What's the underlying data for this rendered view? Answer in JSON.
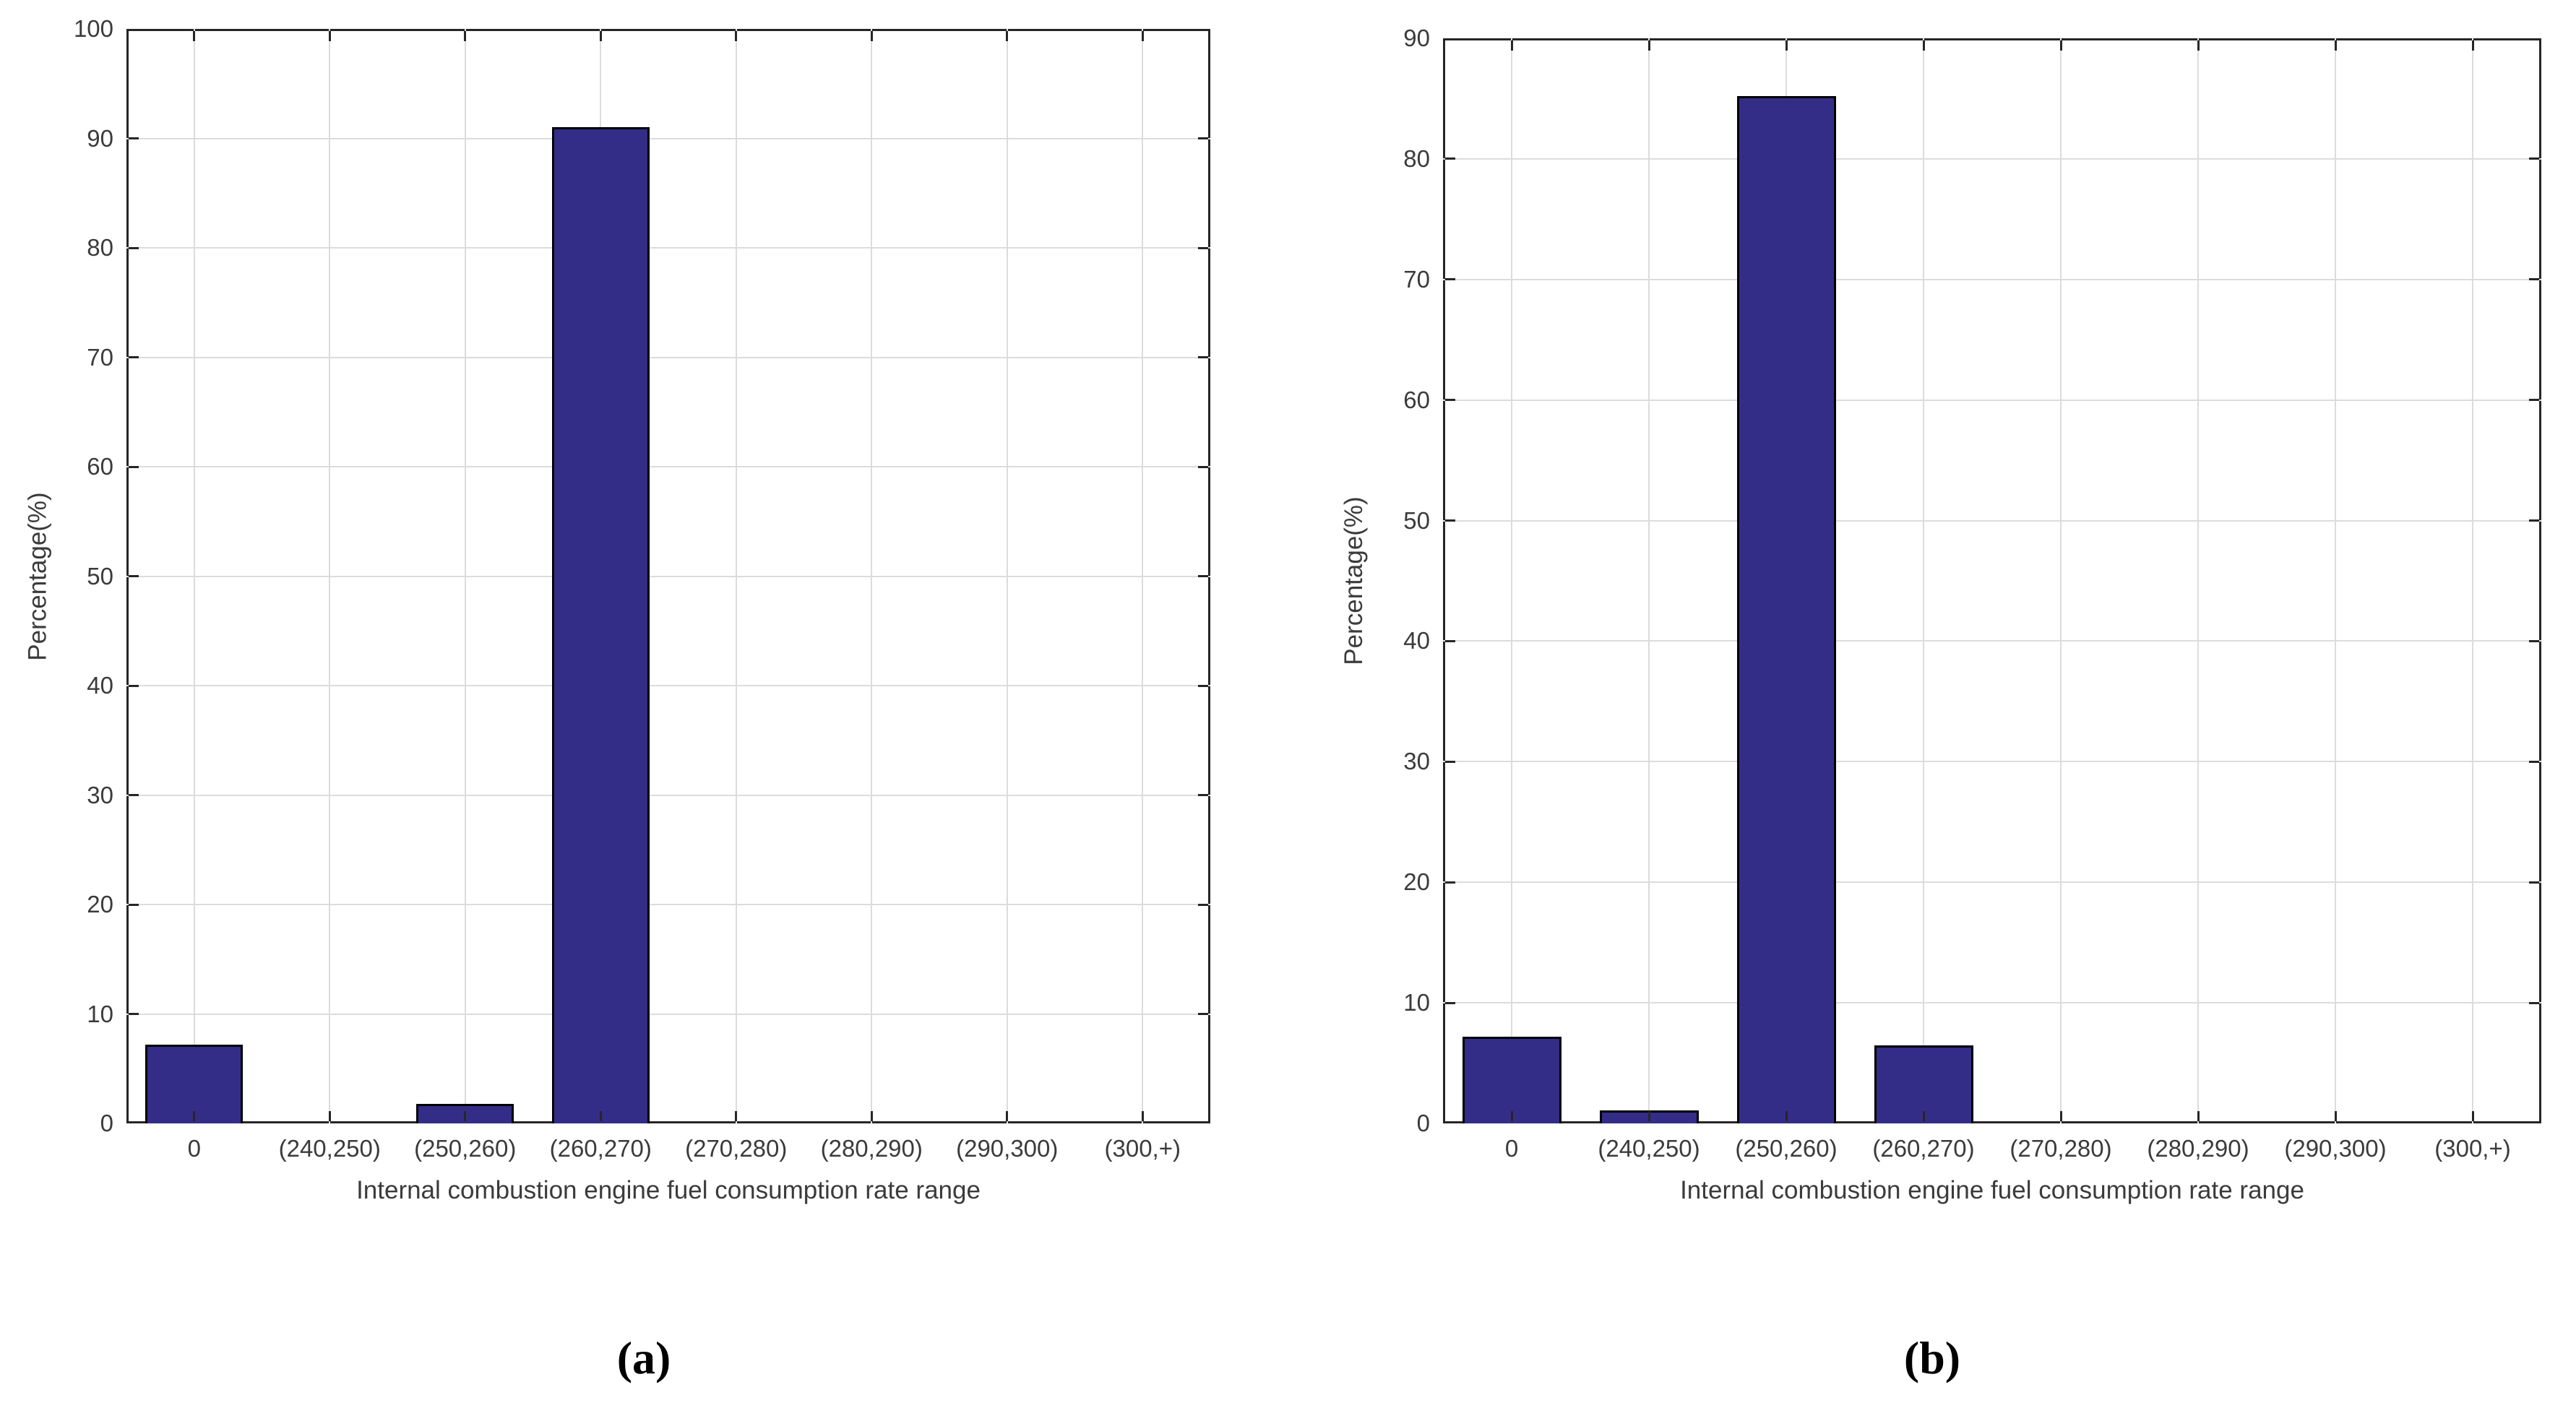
{
  "figure": {
    "background": "#ffffff",
    "grid_color": "#dcdcdc",
    "axis_color": "#262626",
    "text_color": "#3b3b3b"
  },
  "chart_data": [
    {
      "id": "a",
      "type": "bar",
      "caption": "(a)",
      "xlabel": "Internal combustion engine fuel consumption rate range",
      "ylabel": "Percentage(%)",
      "categories": [
        "0",
        "(240,250)",
        "(250,260)",
        "(260,270)",
        "(270,280)",
        "(280,290)",
        "(290,300)",
        "(300,+)"
      ],
      "values": [
        7.2,
        0,
        1.8,
        91,
        0,
        0,
        0,
        0
      ],
      "ylim": [
        0,
        100
      ],
      "ytick_step": 10,
      "ytick_labels": [
        "0",
        "10",
        "20",
        "30",
        "40",
        "50",
        "60",
        "70",
        "80",
        "90",
        "100"
      ],
      "grid": true,
      "legend": null,
      "bar_color": "#342d87",
      "bar_edge_color": "#000000"
    },
    {
      "id": "b",
      "type": "bar",
      "caption": "(b)",
      "xlabel": "Internal combustion engine fuel consumption rate range",
      "ylabel": "Percentage(%)",
      "categories": [
        "0",
        "(240,250)",
        "(250,260)",
        "(260,270)",
        "(270,280)",
        "(280,290)",
        "(290,300)",
        "(300,+)"
      ],
      "values": [
        7.2,
        1.1,
        85.2,
        6.5,
        0,
        0,
        0,
        0
      ],
      "ylim": [
        0,
        90
      ],
      "ytick_step": 10,
      "ytick_labels": [
        "0",
        "10",
        "20",
        "30",
        "40",
        "50",
        "60",
        "70",
        "80",
        "90"
      ],
      "grid": true,
      "legend": null,
      "bar_color": "#342d87",
      "bar_edge_color": "#000000"
    }
  ]
}
